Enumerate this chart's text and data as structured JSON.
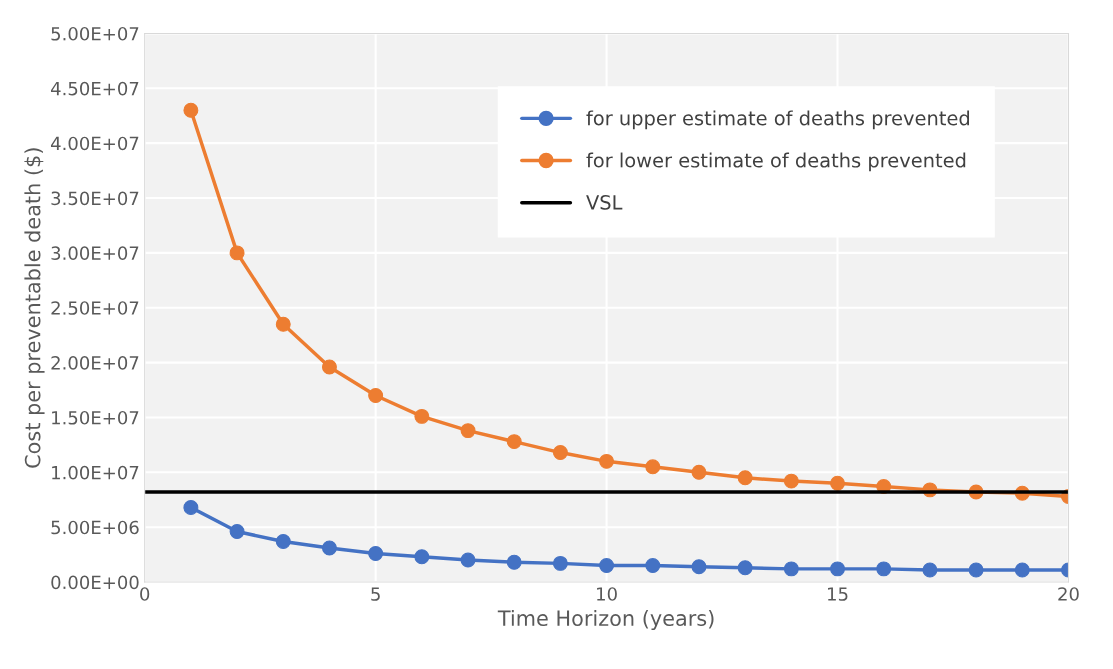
{
  "chart_data": {
    "type": "line",
    "xlabel": "Time Horizon (years)",
    "ylabel": "Cost per preventable death ($)",
    "x": [
      1,
      2,
      3,
      4,
      5,
      6,
      7,
      8,
      9,
      10,
      11,
      12,
      13,
      14,
      15,
      16,
      17,
      18,
      19,
      20
    ],
    "series": [
      {
        "name": "for upper estimate of deaths prevented",
        "color": "#4472c4",
        "values": [
          6800000,
          4600000,
          3700000,
          3100000,
          2600000,
          2300000,
          2000000,
          1800000,
          1700000,
          1500000,
          1500000,
          1400000,
          1300000,
          1200000,
          1200000,
          1200000,
          1100000,
          1100000,
          1100000,
          1100000
        ]
      },
      {
        "name": "for lower estimate of deaths prevented",
        "color": "#ed7d31",
        "values": [
          43000000,
          30000000,
          23500000,
          19600000,
          17000000,
          15100000,
          13800000,
          12800000,
          11800000,
          11000000,
          10500000,
          10000000,
          9500000,
          9200000,
          9000000,
          8700000,
          8400000,
          8200000,
          8100000,
          7800000
        ]
      }
    ],
    "ref_lines": [
      {
        "axis": "y",
        "value": 8200000,
        "label": "VSL",
        "color": "#000000",
        "line_style": "solid"
      }
    ],
    "xlim": [
      0,
      20
    ],
    "xticks": [
      0,
      5,
      10,
      15,
      20
    ],
    "ylim": [
      0,
      50000000
    ],
    "yticks": [
      {
        "value": 0,
        "label": "0.00E+00"
      },
      {
        "value": 5000000,
        "label": "5.00E+06"
      },
      {
        "value": 10000000,
        "label": "1.00E+07"
      },
      {
        "value": 15000000,
        "label": "1.50E+07"
      },
      {
        "value": 20000000,
        "label": "2.00E+07"
      },
      {
        "value": 25000000,
        "label": "2.50E+07"
      },
      {
        "value": 30000000,
        "label": "3.00E+07"
      },
      {
        "value": 35000000,
        "label": "3.50E+07"
      },
      {
        "value": 40000000,
        "label": "4.00E+07"
      },
      {
        "value": 45000000,
        "label": "4.50E+07"
      },
      {
        "value": 50000000,
        "label": "5.00E+07"
      }
    ],
    "grid": true,
    "legend": "top right",
    "marker": "circle",
    "line_style": "solid"
  }
}
